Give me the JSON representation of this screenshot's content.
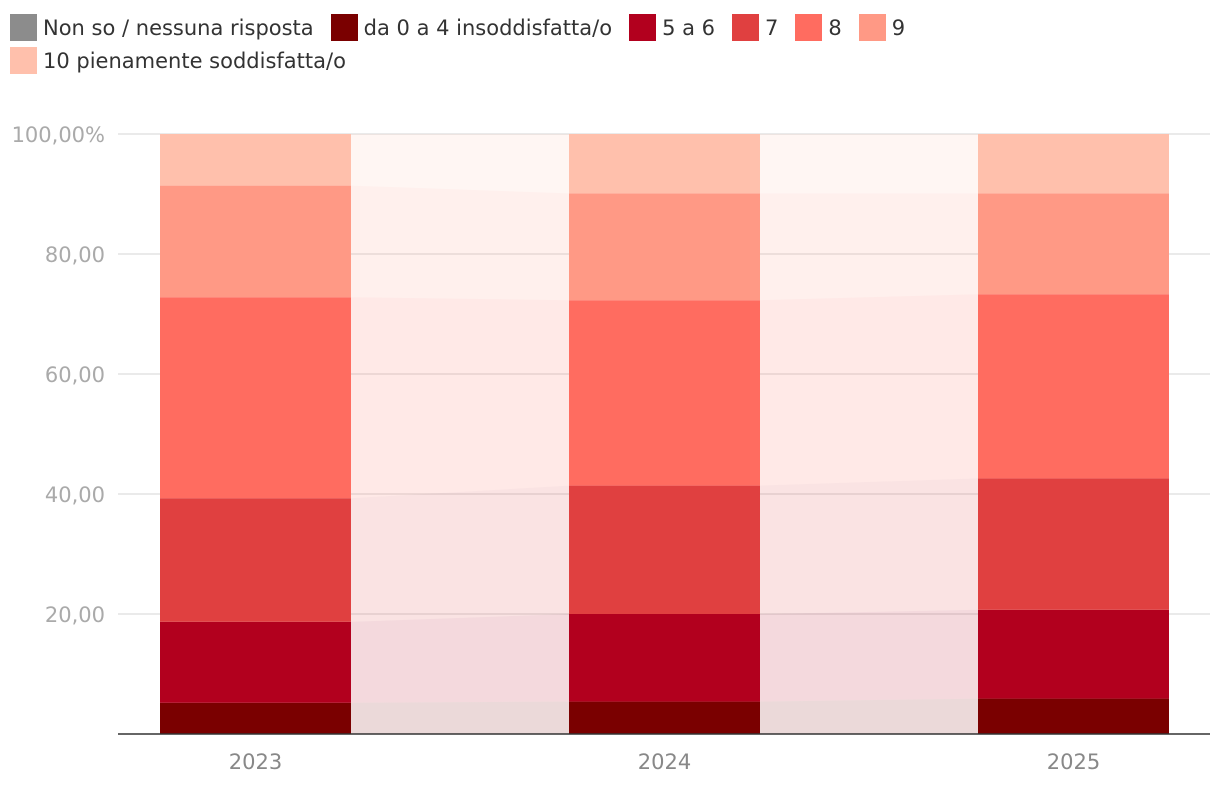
{
  "chart_data": {
    "type": "bar",
    "stacked": true,
    "categories": [
      "2023",
      "2024",
      "2025"
    ],
    "series": [
      {
        "name": "Non so / nessuna risposta",
        "color": "#8c8c8c",
        "values": [
          0.0,
          0.0,
          0.0
        ]
      },
      {
        "name": "da 0 a 4 insoddisfatta/o",
        "color": "#7a0000",
        "values": [
          5.2,
          5.4,
          5.9
        ]
      },
      {
        "name": "5 a 6",
        "color": "#b2001e",
        "values": [
          13.5,
          14.6,
          14.8
        ]
      },
      {
        "name": "7",
        "color": "#e04040",
        "values": [
          20.6,
          21.4,
          21.9
        ]
      },
      {
        "name": "8",
        "color": "#ff6c60",
        "values": [
          33.5,
          30.9,
          30.7
        ]
      },
      {
        "name": "9",
        "color": "#ff9985",
        "values": [
          18.6,
          17.8,
          16.8
        ]
      },
      {
        "name": "10 pienamente soddisfatta/o",
        "color": "#ffc0ac",
        "values": [
          8.6,
          9.9,
          9.9
        ]
      }
    ],
    "y_ticks": [
      "20,00",
      "40,00",
      "60,00",
      "80,00",
      "100,00%"
    ],
    "ylim": [
      0,
      100
    ],
    "grid": true,
    "legend_position": "top"
  }
}
